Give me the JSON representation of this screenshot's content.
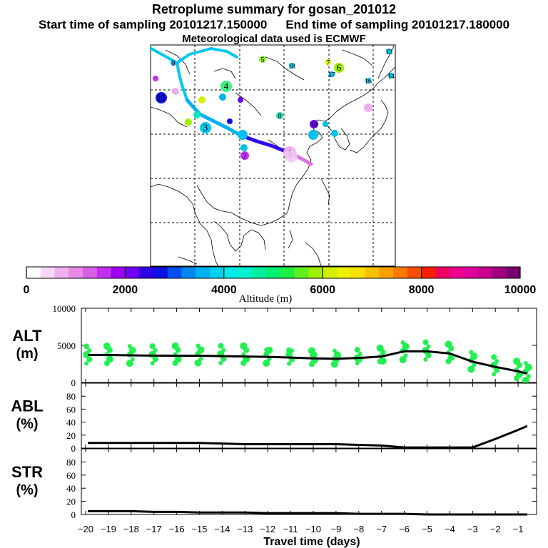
{
  "header": {
    "title": "Retroplume summary for gosan_201012",
    "start_label": "Start time of sampling 20101217.150000",
    "end_label": "End time of sampling 20101217.180000",
    "met_label": "Meteorological data used is ECMWF"
  },
  "colorbar": {
    "label": "Altitude (m)",
    "ticks": [
      "0",
      "2000",
      "4000",
      "6000",
      "8000",
      "10000"
    ],
    "min": 0,
    "max": 10000,
    "colors": [
      "#ffffff",
      "#f8d8f8",
      "#f0b0f0",
      "#e888e8",
      "#d860e8",
      "#c030f0",
      "#a000f0",
      "#7000f0",
      "#3000e8",
      "#1010e0",
      "#0050f0",
      "#0088f0",
      "#00b0f0",
      "#00d0f0",
      "#00e8e8",
      "#00f0d0",
      "#00f0a0",
      "#00f070",
      "#20f040",
      "#60f020",
      "#a0f000",
      "#d0f000",
      "#f0f000",
      "#f8e000",
      "#f8c000",
      "#f8a000",
      "#f87800",
      "#f85000",
      "#f82000",
      "#f00060",
      "#f00090",
      "#e000a0",
      "#c80090",
      "#a00080",
      "#780070"
    ]
  },
  "map": {
    "markers": [
      {
        "label": "1",
        "color": "#f0b0f0"
      },
      {
        "label": "2",
        "color": "#c030f0"
      },
      {
        "label": "3",
        "color": "#00c8f0"
      },
      {
        "label": "4",
        "color": "#40f080"
      },
      {
        "label": "5",
        "color": "#80f020"
      },
      {
        "label": "6",
        "color": "#a0f000"
      },
      {
        "label": "7",
        "color": "#d0f000"
      },
      {
        "label": "8",
        "color": "#00e8c0"
      },
      {
        "label": "9",
        "color": "#00b0f0"
      },
      {
        "label": "10",
        "color": "#7000f0"
      },
      {
        "label": "11",
        "color": "#1010e0"
      },
      {
        "label": "13",
        "color": "#00c0f0"
      },
      {
        "label": "14",
        "color": "#00c0f0"
      },
      {
        "label": "16",
        "color": "#00c0f0"
      },
      {
        "label": "17",
        "color": "#00c0f0"
      },
      {
        "label": "18",
        "color": "#00c0f0"
      }
    ]
  },
  "chart_data": {
    "type": "line",
    "xlabel": "Travel time (days)",
    "x_ticks": [
      "−20",
      "−19",
      "−18",
      "−17",
      "−16",
      "−15",
      "−14",
      "−13",
      "−12",
      "−11",
      "−10",
      "−9",
      "−8",
      "−7",
      "−6",
      "−5",
      "−4",
      "−3",
      "−2",
      "−1"
    ],
    "x_range": [
      -20,
      0
    ],
    "panels": [
      {
        "name": "alt",
        "ylabel_top": "ALT",
        "ylabel_bottom": "(m)",
        "ylim": [
          0,
          10000
        ],
        "y_ticks": [
          "10000",
          "5000",
          "0"
        ],
        "x": [
          -19.9,
          -19,
          -18,
          -17,
          -16,
          -15,
          -14,
          -13,
          -12,
          -11,
          -10,
          -9,
          -8,
          -7,
          -6,
          -5,
          -4,
          -3,
          -2,
          -1,
          -0.6
        ],
        "values": [
          3700,
          3700,
          3650,
          3620,
          3600,
          3600,
          3550,
          3500,
          3450,
          3350,
          3250,
          3200,
          3300,
          3500,
          4200,
          4200,
          3900,
          2800,
          2100,
          1500,
          1200
        ],
        "scatter_color": "#20f050"
      },
      {
        "name": "abl",
        "ylabel_top": "ABL",
        "ylabel_bottom": "(%)",
        "ylim": [
          0,
          100
        ],
        "y_ticks": [
          "80",
          "60",
          "40",
          "20",
          "0"
        ],
        "x": [
          -19.9,
          -19,
          -18,
          -17,
          -16,
          -15,
          -14,
          -13,
          -12,
          -11,
          -10,
          -9,
          -8,
          -7,
          -6,
          -5,
          -4,
          -3,
          -2,
          -1,
          -0.6
        ],
        "values": [
          8,
          8,
          8,
          8,
          8,
          8,
          7,
          6,
          6,
          6,
          6,
          6,
          5,
          4,
          1,
          1,
          1,
          1,
          14,
          28,
          34
        ]
      },
      {
        "name": "str",
        "ylabel_top": "STR",
        "ylabel_bottom": "(%)",
        "ylim": [
          0,
          100
        ],
        "y_ticks": [
          "80",
          "60",
          "40",
          "20",
          "0"
        ],
        "x": [
          -19.9,
          -19,
          -18,
          -17,
          -16,
          -15,
          -14,
          -13,
          -12,
          -11,
          -10,
          -9,
          -8,
          -7,
          -6,
          -5,
          -4,
          -3,
          -2,
          -1,
          -0.6
        ],
        "values": [
          5,
          5,
          5,
          4,
          4,
          3,
          3,
          3,
          2,
          2,
          2,
          2,
          1,
          1,
          1,
          0,
          0,
          0,
          0,
          0,
          0
        ]
      }
    ]
  }
}
